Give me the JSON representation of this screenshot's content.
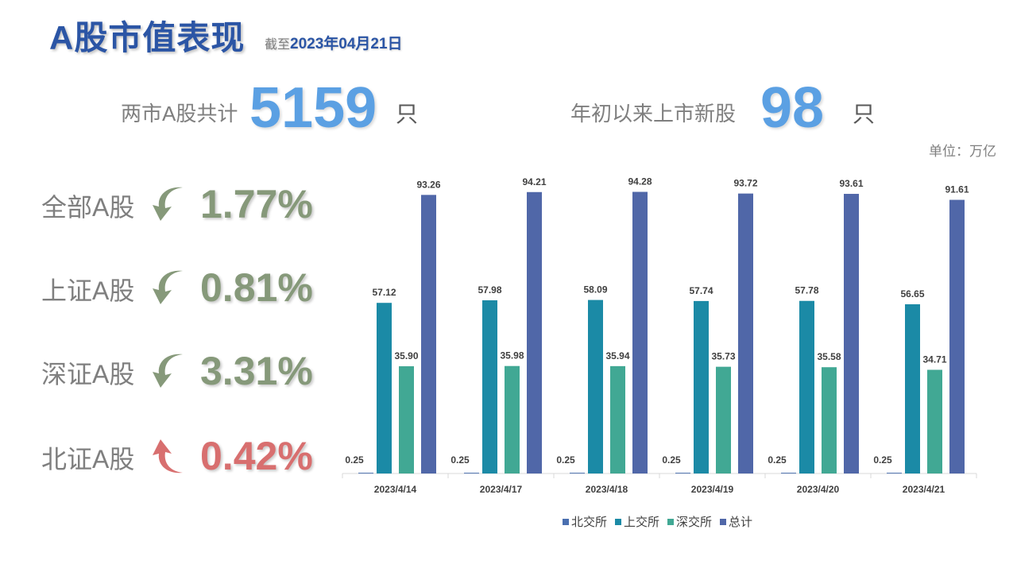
{
  "header": {
    "title": "A股市值表现",
    "asof_prefix": "截至",
    "asof_date": "2023年04月21日"
  },
  "stats": {
    "total_label": "两市A股共计",
    "total_value": "5159",
    "total_unit": "只",
    "new_label": "年初以来上市新股",
    "new_value": "98",
    "new_unit": "只"
  },
  "unit_note": "单位：万亿",
  "performance": [
    {
      "label": "全部A股",
      "value": "1.77%",
      "direction": "down",
      "color": "#86997A"
    },
    {
      "label": "上证A股",
      "value": "0.81%",
      "direction": "down",
      "color": "#86997A"
    },
    {
      "label": "深证A股",
      "value": "3.31%",
      "direction": "down",
      "color": "#86997A"
    },
    {
      "label": "北证A股",
      "value": "0.42%",
      "direction": "up",
      "color": "#D86F6F"
    }
  ],
  "chart_data": {
    "type": "bar",
    "categories": [
      "2023/4/14",
      "2023/4/17",
      "2023/4/18",
      "2023/4/19",
      "2023/4/20",
      "2023/4/21"
    ],
    "series": [
      {
        "name": "北交所",
        "color": "#4A6FB0",
        "values": [
          0.25,
          0.25,
          0.25,
          0.25,
          0.25,
          0.25
        ]
      },
      {
        "name": "上交所",
        "color": "#1B8AA6",
        "values": [
          57.12,
          57.98,
          58.09,
          57.74,
          57.78,
          56.65
        ]
      },
      {
        "name": "深交所",
        "color": "#41A894",
        "values": [
          35.9,
          35.98,
          35.94,
          35.73,
          35.58,
          34.71
        ]
      },
      {
        "name": "总计",
        "color": "#5067A8",
        "values": [
          93.26,
          94.21,
          94.28,
          93.72,
          93.61,
          91.61
        ]
      }
    ],
    "data_labels": [
      [
        "0.25",
        "0.25",
        "0.25",
        "0.25",
        "0.25",
        "0.25"
      ],
      [
        "57.12",
        "57.98",
        "58.09",
        "57.74",
        "57.78",
        "56.65"
      ],
      [
        "35.90",
        "35.98",
        "35.94",
        "35.73",
        "35.58",
        "34.71"
      ],
      [
        "93.26",
        "94.21",
        "94.28",
        "93.72",
        "93.61",
        "91.61"
      ]
    ],
    "ylim": [
      0,
      100
    ],
    "grid": false,
    "legend_position": "bottom"
  }
}
